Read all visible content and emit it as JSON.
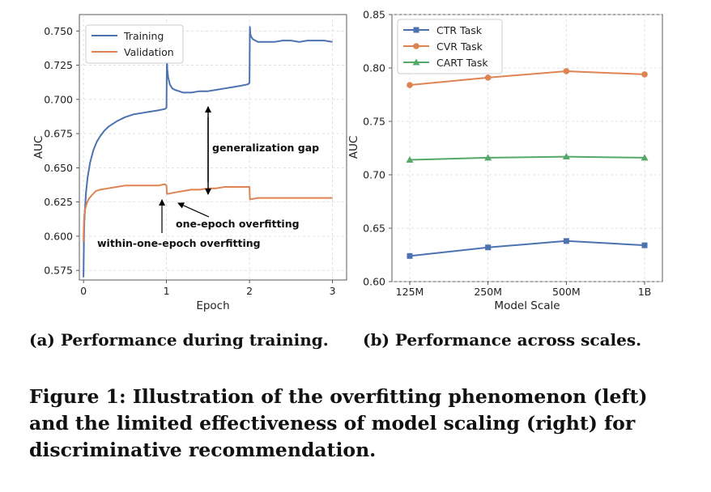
{
  "chart_data": [
    {
      "type": "line",
      "xlabel": "Epoch",
      "ylabel": "AUC",
      "xlim": [
        -0.05,
        3.17
      ],
      "ylim": [
        0.568,
        0.762
      ],
      "xticks": [
        0,
        1,
        2,
        3
      ],
      "yticks": [
        0.575,
        0.6,
        0.625,
        0.65,
        0.675,
        0.7,
        0.725,
        0.75
      ],
      "ytick_labels": [
        "0.575",
        "0.600",
        "0.625",
        "0.650",
        "0.675",
        "0.700",
        "0.725",
        "0.750"
      ],
      "grid": true,
      "legend": "top-left",
      "series": [
        {
          "name": "Training",
          "color": "#4c72b0",
          "x": [
            0.0,
            0.005,
            0.01,
            0.02,
            0.03,
            0.05,
            0.08,
            0.12,
            0.16,
            0.2,
            0.25,
            0.3,
            0.4,
            0.5,
            0.6,
            0.7,
            0.8,
            0.9,
            0.98,
            1.0,
            1.005,
            1.01,
            1.02,
            1.04,
            1.07,
            1.1,
            1.15,
            1.2,
            1.3,
            1.4,
            1.5,
            1.6,
            1.7,
            1.8,
            1.9,
            1.98,
            2.0,
            2.005,
            2.01,
            2.02,
            2.04,
            2.07,
            2.1,
            2.15,
            2.2,
            2.3,
            2.4,
            2.5,
            2.6,
            2.7,
            2.8,
            2.9,
            3.0
          ],
          "y": [
            0.57,
            0.595,
            0.61,
            0.622,
            0.632,
            0.643,
            0.654,
            0.663,
            0.669,
            0.673,
            0.677,
            0.68,
            0.684,
            0.687,
            0.689,
            0.69,
            0.691,
            0.692,
            0.693,
            0.694,
            0.729,
            0.722,
            0.716,
            0.711,
            0.708,
            0.707,
            0.706,
            0.705,
            0.705,
            0.706,
            0.706,
            0.707,
            0.708,
            0.709,
            0.71,
            0.711,
            0.712,
            0.753,
            0.748,
            0.746,
            0.744,
            0.743,
            0.742,
            0.742,
            0.742,
            0.742,
            0.743,
            0.743,
            0.742,
            0.743,
            0.743,
            0.743,
            0.742
          ]
        },
        {
          "name": "Validation",
          "color": "#dd8452",
          "x": [
            0.0,
            0.005,
            0.01,
            0.02,
            0.04,
            0.06,
            0.1,
            0.15,
            0.2,
            0.3,
            0.4,
            0.5,
            0.6,
            0.7,
            0.8,
            0.9,
            0.98,
            1.0,
            1.005,
            1.02,
            1.1,
            1.2,
            1.3,
            1.4,
            1.5,
            1.6,
            1.7,
            1.8,
            1.9,
            1.98,
            2.0,
            2.005,
            2.02,
            2.1,
            2.2,
            2.3,
            2.4,
            2.5,
            2.6,
            2.7,
            2.8,
            2.9,
            3.0
          ],
          "y": [
            0.596,
            0.609,
            0.615,
            0.62,
            0.624,
            0.627,
            0.63,
            0.633,
            0.634,
            0.635,
            0.636,
            0.637,
            0.637,
            0.637,
            0.637,
            0.637,
            0.638,
            0.637,
            0.631,
            0.631,
            0.632,
            0.633,
            0.634,
            0.634,
            0.635,
            0.635,
            0.636,
            0.636,
            0.636,
            0.636,
            0.636,
            0.627,
            0.627,
            0.628,
            0.628,
            0.628,
            0.628,
            0.628,
            0.628,
            0.628,
            0.628,
            0.628,
            0.628
          ]
        }
      ],
      "annotations": [
        "generalization gap",
        "one-epoch overfitting",
        "within-one-epoch overfitting"
      ]
    },
    {
      "type": "line",
      "xlabel": "Model Scale",
      "ylabel": "AUC",
      "categories": [
        "125M",
        "250M",
        "500M",
        "1B"
      ],
      "ylim": [
        0.6,
        0.85
      ],
      "yticks": [
        0.6,
        0.65,
        0.7,
        0.75,
        0.8,
        0.85
      ],
      "ytick_labels": [
        "0.60",
        "0.65",
        "0.70",
        "0.75",
        "0.80",
        "0.85"
      ],
      "grid": true,
      "legend": "top-left",
      "series": [
        {
          "name": "CTR Task",
          "color": "#4c72b0",
          "marker": "square",
          "values": [
            0.624,
            0.632,
            0.638,
            0.634
          ]
        },
        {
          "name": "CVR Task",
          "color": "#dd8452",
          "marker": "circle",
          "values": [
            0.784,
            0.791,
            0.797,
            0.794
          ]
        },
        {
          "name": "CART Task",
          "color": "#55a868",
          "marker": "triangle",
          "values": [
            0.714,
            0.716,
            0.717,
            0.716
          ]
        }
      ]
    }
  ],
  "captions": {
    "a": "(a) Performance during training.",
    "b": "(b) Performance across scales.",
    "figure_lines": [
      "Figure 1: Illustration of the overfitting phenomenon (left)",
      "and the limited effectiveness of model scaling (right) for",
      "discriminative recommendation."
    ]
  }
}
